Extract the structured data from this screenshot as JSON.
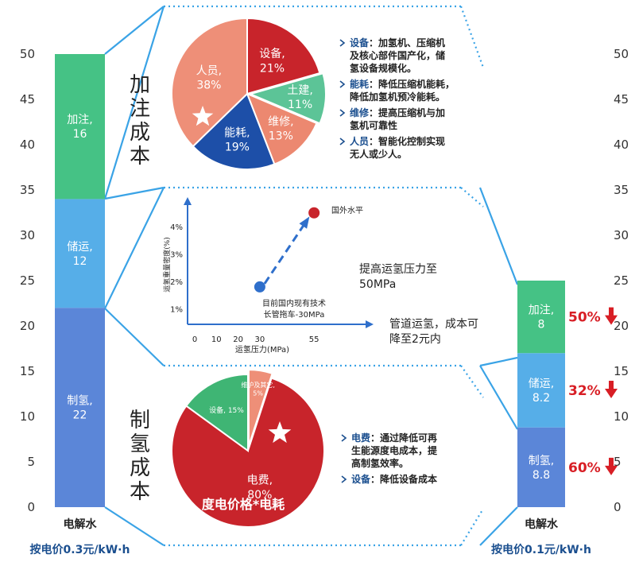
{
  "chart_data": [
    {
      "type": "bar",
      "stacked": true,
      "categories": [
        "电解水"
      ],
      "ylim": [
        0,
        50
      ],
      "yticks": [
        0,
        5,
        10,
        15,
        20,
        25,
        30,
        35,
        40,
        45,
        50
      ],
      "note": "按电价0.3元/kW·h",
      "series": [
        {
          "name": "制氢",
          "values": [
            22
          ],
          "label": "制氢,\n22",
          "color": "#5b86d8"
        },
        {
          "name": "储运",
          "values": [
            12
          ],
          "label": "储运,\n12",
          "color": "#56aee8"
        },
        {
          "name": "加注",
          "values": [
            16
          ],
          "label": "加注,\n16",
          "color": "#45c285"
        }
      ]
    },
    {
      "type": "pie",
      "title": "加注成本",
      "slices": [
        {
          "label": "设备,\n21%",
          "value": 21,
          "color": "#c8242b"
        },
        {
          "label": "土建,\n11%",
          "value": 11,
          "color": "#5cc497"
        },
        {
          "label": "维修,\n13%",
          "value": 13,
          "color": "#ec8870"
        },
        {
          "label": "能耗,\n19%",
          "value": 19,
          "color": "#1d4fa8"
        },
        {
          "label": "人员,\n38%",
          "value": 38,
          "color": "#ee8f78"
        }
      ]
    },
    {
      "type": "scatter",
      "xlabel": "运氢压力(MPa)",
      "ylabel": "运氢重量密度(%)",
      "xticks": [
        "0",
        "10",
        "20",
        "30",
        "55"
      ],
      "yticks": [
        "1%",
        "2%",
        "3%",
        "4%"
      ],
      "points": [
        {
          "x": 30,
          "y": 1.8,
          "label": "目前国内现有技术\n长管拖车-30MPa",
          "color": "#2f6fcb"
        },
        {
          "x": 55,
          "y": 4.5,
          "label": "国外水平",
          "color": "#c8242b"
        }
      ]
    },
    {
      "type": "pie",
      "title": "制氢成本",
      "slices": [
        {
          "label": "电费,\n80%",
          "value": 80,
          "color": "#c8242b"
        },
        {
          "label": "设备, 15%",
          "value": 15,
          "color": "#3fb574"
        },
        {
          "label": "维护及其它,\n5%",
          "value": 5,
          "color": "#ee8f78"
        }
      ],
      "caption": "度电价格*电耗"
    },
    {
      "type": "bar",
      "stacked": true,
      "categories": [
        "电解水"
      ],
      "ylim": [
        0,
        50
      ],
      "yticks": [
        0,
        5,
        10,
        15,
        20,
        25,
        30,
        35,
        40,
        45,
        50
      ],
      "note": "按电价0.1元/kW·h",
      "series": [
        {
          "name": "制氢",
          "values": [
            8.8
          ],
          "label": "制氢,\n8.8",
          "color": "#5b86d8",
          "reduction": "60%"
        },
        {
          "name": "储运",
          "values": [
            8.2
          ],
          "label": "储运,\n8.2",
          "color": "#56aee8",
          "reduction": "32%"
        },
        {
          "name": "加注",
          "values": [
            8
          ],
          "label": "加注,\n8",
          "color": "#45c285",
          "reduction": "50%"
        }
      ]
    }
  ],
  "annotations": {
    "refuel_notes": [
      {
        "key": "设备",
        "text": "：加氢机、压缩机\n及核心部件国产化，储\n氢设备规模化。"
      },
      {
        "key": "能耗",
        "text": "：降低压缩机能耗，\n降低加氢机预冷能耗。"
      },
      {
        "key": "维修",
        "text": "：提高压缩机与加\n氢机可靠性"
      },
      {
        "key": "人员",
        "text": "：智能化控制实现\n无人或少人。"
      }
    ],
    "transport_note_1": "提高运氢压力至\n50MPa",
    "transport_note_2": "管道运氢，成本可\n降至2元内",
    "production_notes": [
      {
        "key": "电费",
        "text": "：通过降低可再\n生能源度电成本，提\n高制氢效率。"
      },
      {
        "key": "设备",
        "text": "：降低设备成本"
      }
    ]
  },
  "colors": {
    "connector": "#3aa3e6",
    "key_text": "#1b4f8f",
    "body_text": "#222222",
    "arrow": "#2f6fcb",
    "reduction": "#d81e25",
    "note": "#1b4f8f"
  }
}
